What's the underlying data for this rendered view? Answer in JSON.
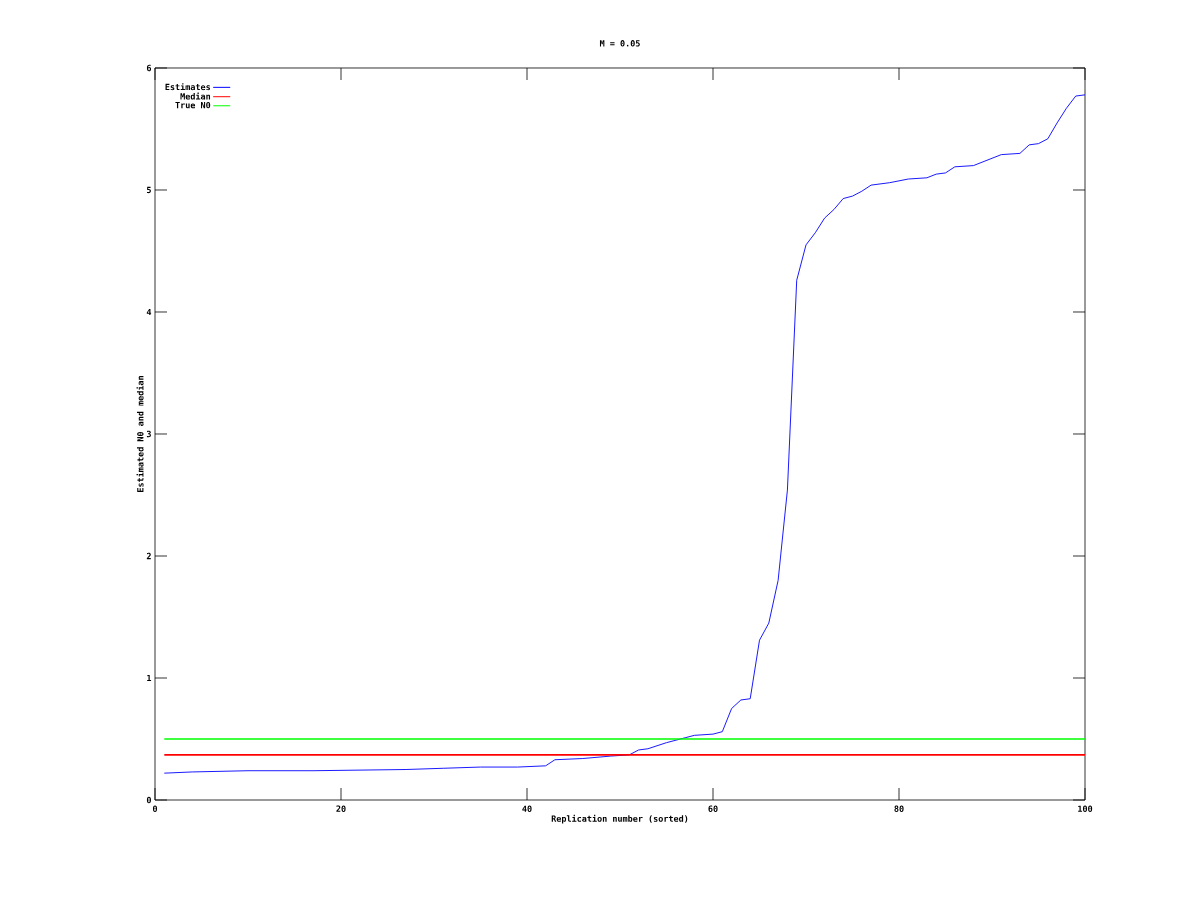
{
  "chart_data": {
    "type": "line",
    "title": "M = 0.05",
    "xlabel": "Replication number (sorted)",
    "ylabel": "Estimated N0 and median",
    "xlim": [
      0,
      100
    ],
    "ylim": [
      0,
      6
    ],
    "xticks": [
      0,
      20,
      40,
      60,
      80,
      100
    ],
    "yticks": [
      0,
      1,
      2,
      3,
      4,
      5,
      6
    ],
    "legend": "top left",
    "grid": false,
    "marker": "none",
    "line_style": "solid",
    "series": [
      {
        "name": "Estimates",
        "color": "#0000ff",
        "x": [
          1,
          4,
          10,
          17,
          27,
          31,
          35,
          39,
          42,
          43,
          46,
          49,
          51,
          52,
          53,
          55,
          57,
          58,
          60,
          61,
          62,
          63,
          64,
          65,
          66,
          67,
          68,
          69,
          70,
          71,
          72,
          73,
          74,
          75,
          76,
          77,
          79,
          81,
          83,
          84,
          85,
          86,
          88,
          90,
          91,
          93,
          94,
          95,
          96,
          97,
          98,
          99,
          100
        ],
        "values": [
          0.22,
          0.23,
          0.24,
          0.24,
          0.25,
          0.26,
          0.27,
          0.27,
          0.28,
          0.33,
          0.34,
          0.36,
          0.37,
          0.41,
          0.42,
          0.47,
          0.51,
          0.53,
          0.54,
          0.56,
          0.75,
          0.82,
          0.83,
          1.31,
          1.45,
          1.8,
          2.54,
          4.26,
          4.55,
          4.65,
          4.77,
          4.84,
          4.93,
          4.95,
          4.99,
          5.04,
          5.06,
          5.09,
          5.1,
          5.13,
          5.14,
          5.19,
          5.2,
          5.26,
          5.29,
          5.3,
          5.37,
          5.38,
          5.42,
          5.55,
          5.67,
          5.77,
          5.78
        ]
      },
      {
        "name": "Median",
        "color": "#ff0000",
        "x": [
          1,
          100
        ],
        "values": [
          0.37,
          0.37
        ]
      },
      {
        "name": "True N0",
        "color": "#00ff00",
        "x": [
          1,
          100
        ],
        "values": [
          0.5,
          0.5
        ]
      }
    ]
  }
}
